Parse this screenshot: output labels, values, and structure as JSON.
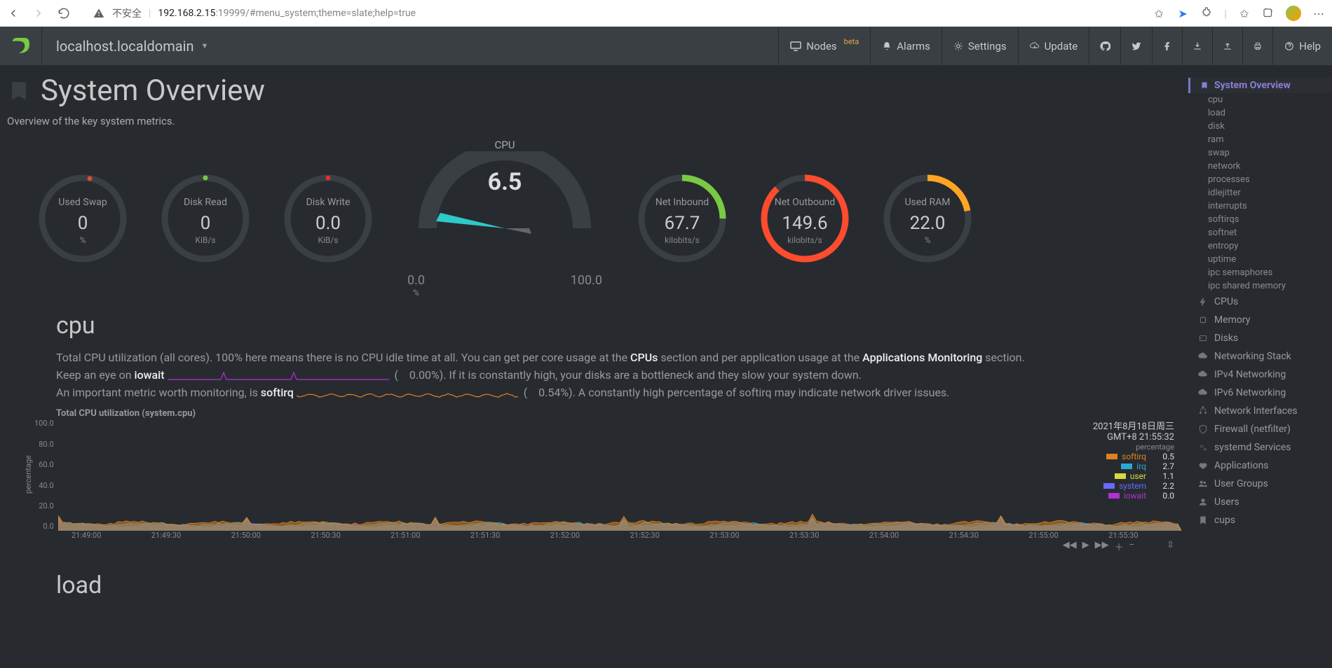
{
  "browser": {
    "insecure_label": "不安全",
    "url_host": "192.168.2.15",
    "url_rest": ":19999/#menu_system;theme=slate;help=true"
  },
  "topnav": {
    "host": "localhost.localdomain",
    "items": {
      "nodes": "Nodes",
      "nodes_badge": "beta",
      "alarms": "Alarms",
      "settings": "Settings",
      "update": "Update",
      "help": "Help"
    }
  },
  "page": {
    "title": "System Overview",
    "subtitle": "Overview of the key system metrics."
  },
  "gauges": {
    "swap": {
      "title": "Used Swap",
      "value": "0",
      "unit": "%",
      "color": "#3a3f44",
      "dot": "#d05030",
      "dot_deg": -80
    },
    "dread": {
      "title": "Disk Read",
      "value": "0",
      "unit": "KiB/s",
      "color": "#3a3f44",
      "dot": "#7ac943",
      "dot_deg": -90
    },
    "dwrite": {
      "title": "Disk Write",
      "value": "0.0",
      "unit": "KiB/s",
      "color": "#3a3f44",
      "dot": "#e03030",
      "dot_deg": -90
    },
    "netin": {
      "title": "Net Inbound",
      "value": "67.7",
      "unit": "kilobits/s",
      "color": "#7ac943",
      "dot": null,
      "pct": 0.25
    },
    "netout": {
      "title": "Net Outbound",
      "value": "149.6",
      "unit": "kilobits/s",
      "color": "#ff4b2e",
      "dot": null,
      "pct": 0.88
    },
    "ram": {
      "title": "Used RAM",
      "value": "22.0",
      "unit": "%",
      "color": "#ffa522",
      "dot": null,
      "pct": 0.22
    }
  },
  "cpu_gauge": {
    "label": "CPU",
    "value": "6.5",
    "min": "0.0",
    "max": "100.0",
    "needle_color": "#2ec9c9",
    "arc_bg": "#3a3f44"
  },
  "cpu": {
    "heading": "cpu",
    "desc_pre": "Total CPU utilization (all cores). 100% here means there is no CPU idle time at all. You can get per core usage at the ",
    "link1": "CPUs",
    "desc_mid": " section and per application usage at the ",
    "link2": "Applications Monitoring",
    "desc_post": " section.",
    "iowait_pre": "Keep an eye on ",
    "iowait_b": "iowait",
    "iowait_val": "0.00%",
    "iowait_post": "). If it is constantly high, your disks are a bottleneck and they slow your system down.",
    "softirq_pre": "An important metric worth monitoring, is ",
    "softirq_b": "softirq",
    "softirq_val": "0.54%",
    "softirq_post": "). A constantly high percentage of softirq may indicate network driver issues.",
    "iowait_color": "#b030d0",
    "softirq_color": "#e08020"
  },
  "chart": {
    "title": "Total CPU utilization (system.cpu)",
    "ylabel": "percentage",
    "ylim": [
      0,
      100
    ],
    "yticks": [
      "100.0",
      "80.0",
      "60.0",
      "40.0",
      "20.0",
      "0.0"
    ],
    "xticks": [
      "21:49:00",
      "21:49:30",
      "21:50:00",
      "21:50:30",
      "21:51:00",
      "21:51:30",
      "21:52:00",
      "21:52:30",
      "21:53:00",
      "21:53:30",
      "21:54:00",
      "21:54:30",
      "21:55:00",
      "21:55:30"
    ],
    "timestamp1": "2021年8月18日周三",
    "timestamp2": "GMT+8 21:55:32",
    "legend_header": "percentage",
    "series": [
      {
        "name": "softirq",
        "color": "#e08020",
        "value": "0.5"
      },
      {
        "name": "irq",
        "color": "#2aa9d2",
        "value": "2.7"
      },
      {
        "name": "user",
        "color": "#d8d840",
        "value": "1.1"
      },
      {
        "name": "system",
        "color": "#6a6aff",
        "value": "2.2"
      },
      {
        "name": "iowait",
        "color": "#b030d0",
        "value": "0.0"
      }
    ],
    "plot_bg": "#272b30",
    "baseline": 6.0
  },
  "rightnav": {
    "active": "System Overview",
    "overview_subs": [
      "cpu",
      "load",
      "disk",
      "ram",
      "swap",
      "network",
      "processes",
      "idlejitter",
      "interrupts",
      "softirqs",
      "softnet",
      "entropy",
      "uptime",
      "ipc semaphores",
      "ipc shared memory"
    ],
    "sections": [
      {
        "label": "CPUs",
        "icon": "bolt"
      },
      {
        "label": "Memory",
        "icon": "chip"
      },
      {
        "label": "Disks",
        "icon": "hdd"
      },
      {
        "label": "Networking Stack",
        "icon": "cloud"
      },
      {
        "label": "IPv4 Networking",
        "icon": "cloud"
      },
      {
        "label": "IPv6 Networking",
        "icon": "cloud"
      },
      {
        "label": "Network Interfaces",
        "icon": "sitemap"
      },
      {
        "label": "Firewall (netfilter)",
        "icon": "shield"
      },
      {
        "label": "systemd Services",
        "icon": "cogs"
      },
      {
        "label": "Applications",
        "icon": "heart"
      },
      {
        "label": "User Groups",
        "icon": "users"
      },
      {
        "label": "Users",
        "icon": "user"
      },
      {
        "label": "cups",
        "icon": "bookmark"
      }
    ]
  },
  "load": {
    "heading": "load"
  }
}
